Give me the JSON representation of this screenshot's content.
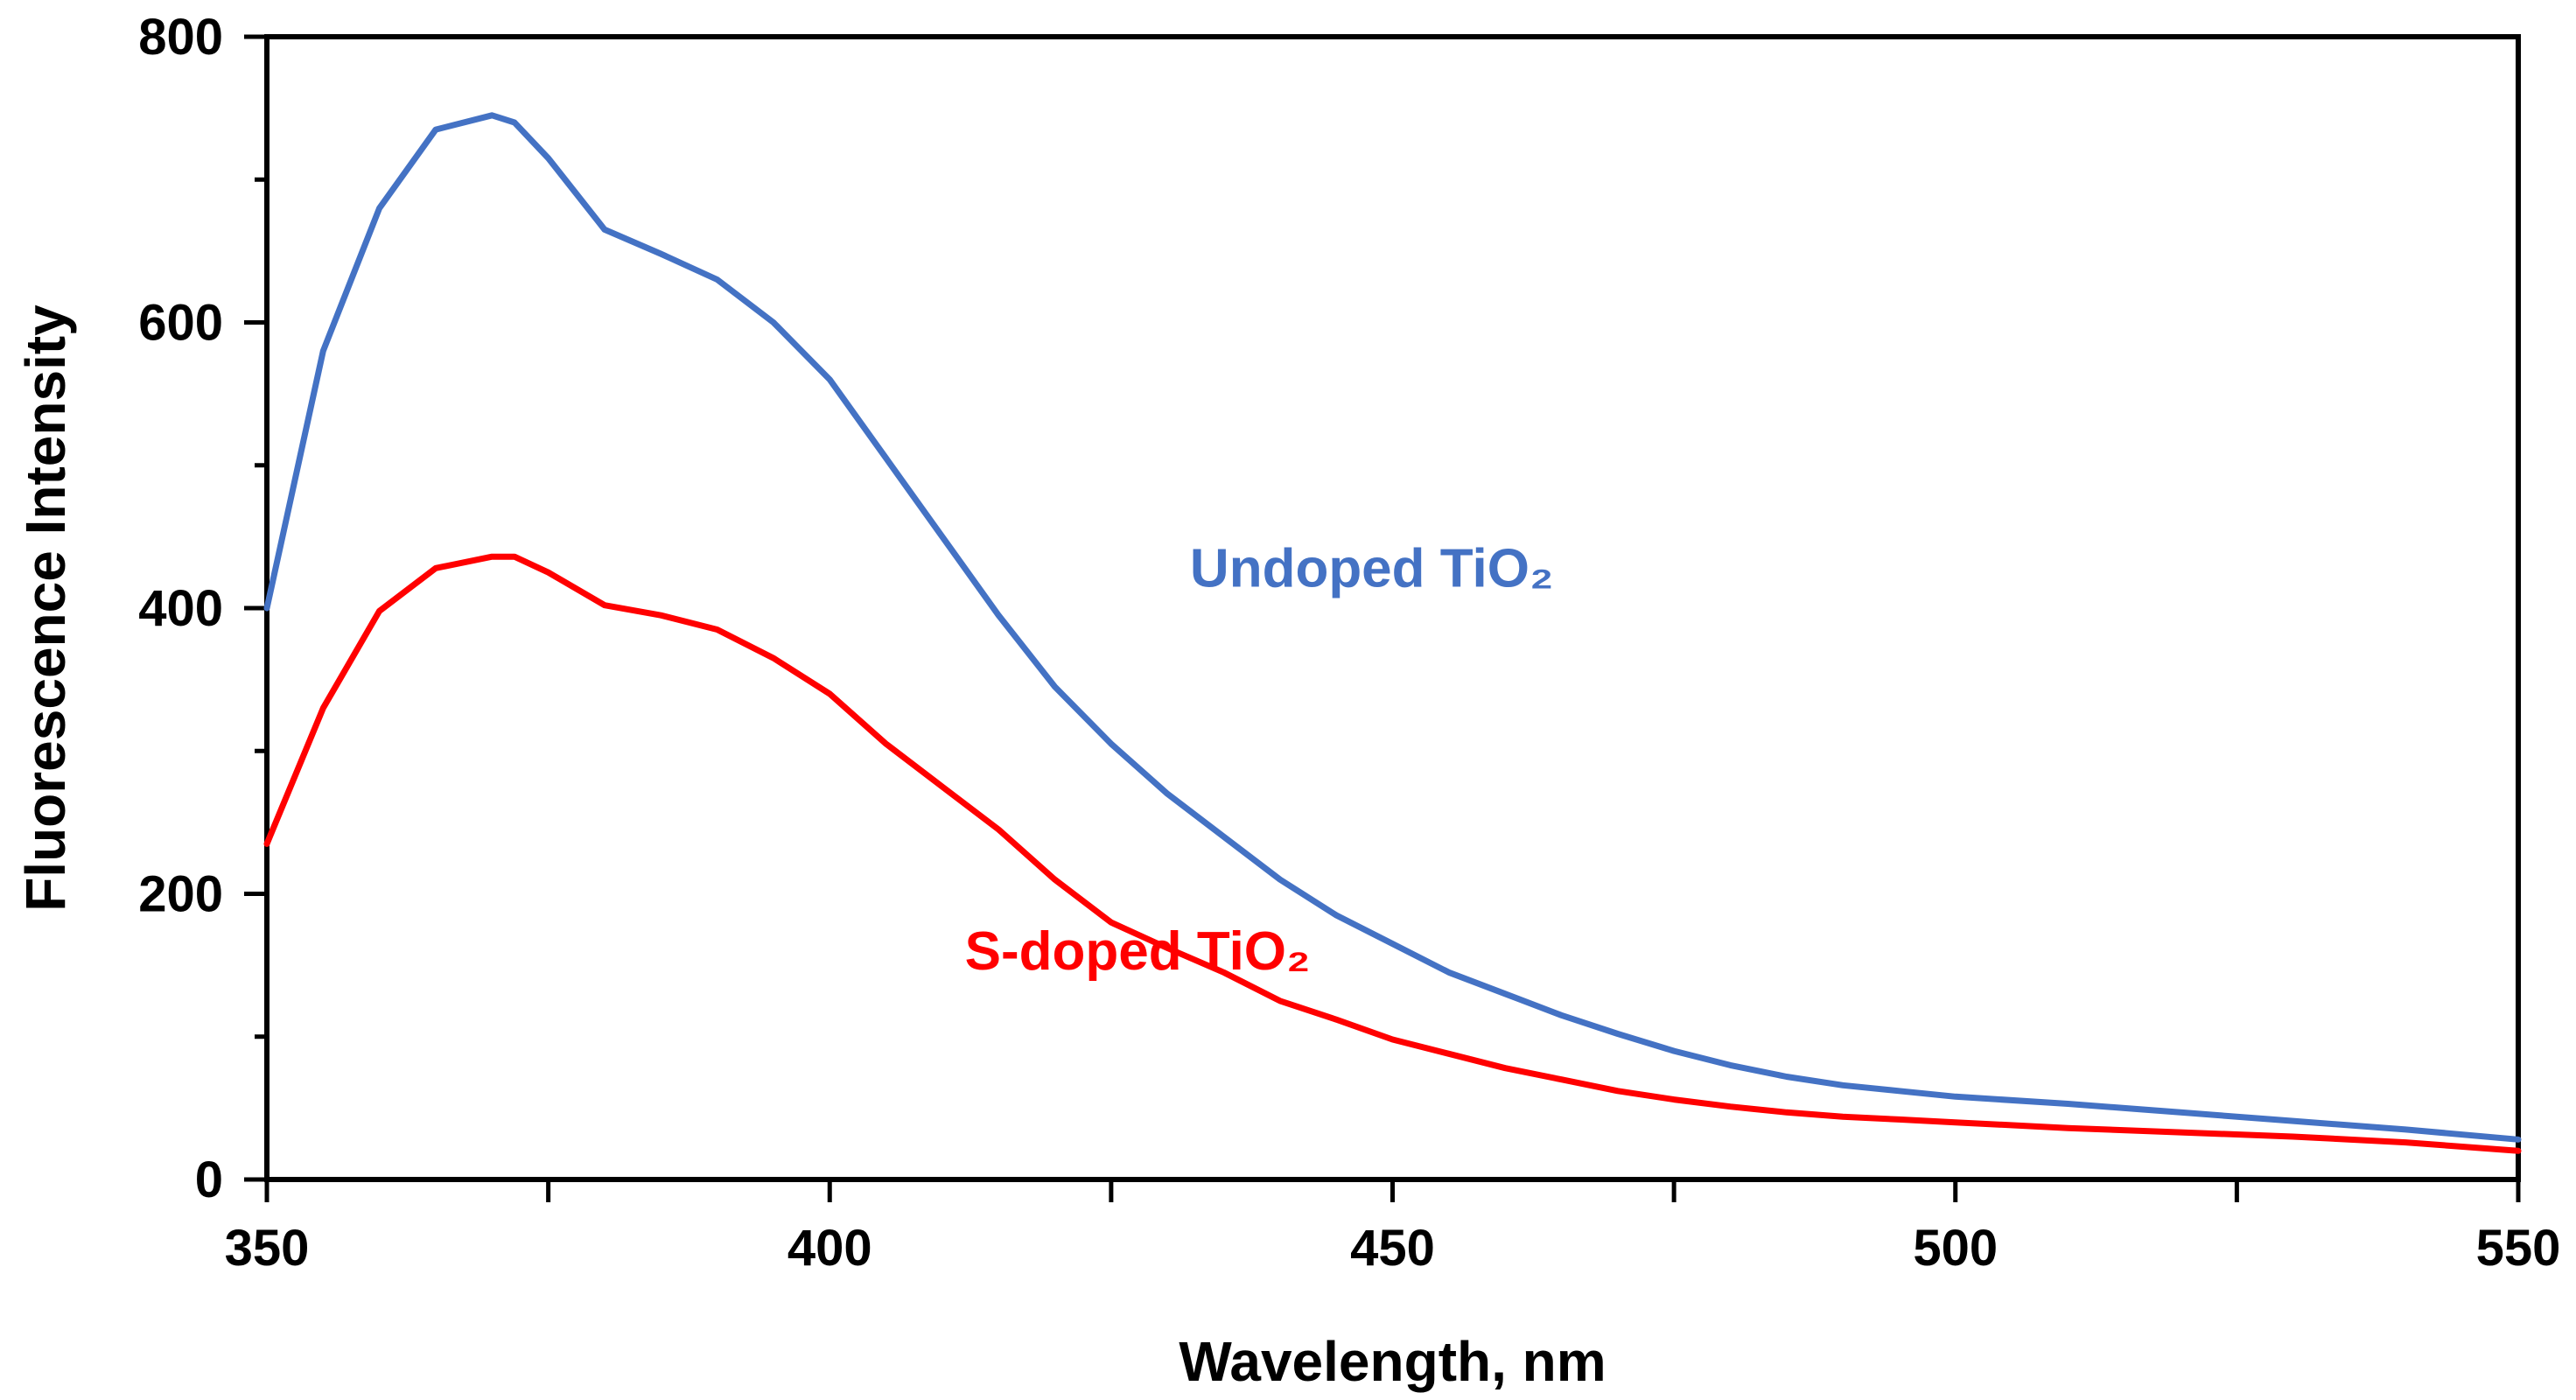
{
  "chart_data": {
    "type": "line",
    "title": "",
    "xlabel": "Wavelength, nm",
    "ylabel": "Fluorescence Intensity",
    "xlim": [
      350,
      550
    ],
    "ylim": [
      0,
      800
    ],
    "x_major_ticks": [
      350,
      400,
      450,
      500,
      550
    ],
    "x_minor_ticks": [
      375,
      425,
      475,
      525
    ],
    "y_major_ticks": [
      0,
      200,
      400,
      600,
      800
    ],
    "y_minor_ticks": [
      100,
      300,
      500,
      700
    ],
    "x_tick_labels": [
      "350",
      "400",
      "450",
      "500",
      "550"
    ],
    "y_tick_labels": [
      "0",
      "200",
      "400",
      "600",
      "800"
    ],
    "grid": false,
    "legend": "inline labels",
    "series": [
      {
        "name": "Undoped TiO₂",
        "color": "#4472C4",
        "label_at": [
          432,
          415
        ],
        "x": [
          350,
          355,
          360,
          365,
          370,
          372,
          375,
          380,
          385,
          390,
          395,
          400,
          405,
          410,
          415,
          420,
          425,
          430,
          435,
          440,
          445,
          450,
          455,
          460,
          465,
          470,
          475,
          480,
          485,
          490,
          495,
          500,
          510,
          520,
          530,
          540,
          550
        ],
        "y": [
          400,
          580,
          680,
          735,
          745,
          740,
          715,
          665,
          648,
          630,
          600,
          560,
          505,
          450,
          395,
          345,
          305,
          270,
          240,
          210,
          185,
          165,
          145,
          130,
          115,
          102,
          90,
          80,
          72,
          66,
          62,
          58,
          53,
          47,
          41,
          35,
          28
        ]
      },
      {
        "name": "S-doped TiO₂",
        "color": "#FF0000",
        "label_at": [
          412,
          147
        ],
        "x": [
          350,
          355,
          360,
          365,
          370,
          372,
          375,
          380,
          385,
          390,
          395,
          400,
          405,
          410,
          415,
          420,
          425,
          430,
          435,
          440,
          445,
          450,
          455,
          460,
          465,
          470,
          475,
          480,
          485,
          490,
          495,
          500,
          510,
          520,
          530,
          540,
          550
        ],
        "y": [
          235,
          330,
          398,
          428,
          436,
          436,
          425,
          402,
          395,
          385,
          365,
          340,
          305,
          275,
          245,
          210,
          180,
          162,
          145,
          125,
          112,
          98,
          88,
          78,
          70,
          62,
          56,
          51,
          47,
          44,
          42,
          40,
          36,
          33,
          30,
          26,
          20
        ]
      }
    ]
  }
}
